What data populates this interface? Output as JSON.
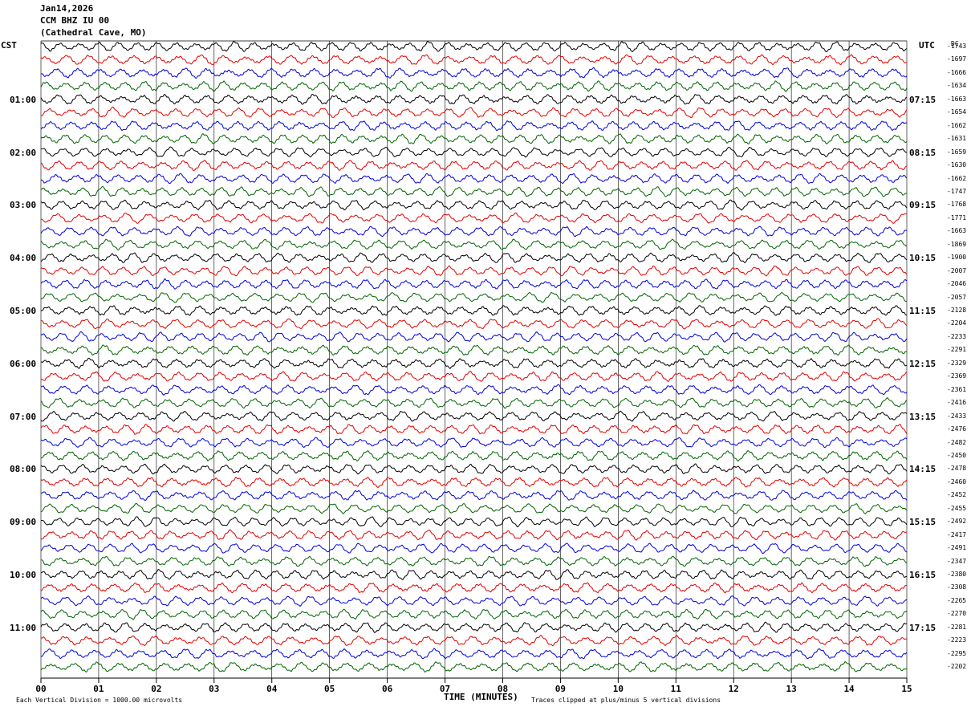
{
  "header": {
    "date": "Jan14,2026",
    "station": "CCM BHZ IU 00",
    "location": "(Cathedral Cave, MO)"
  },
  "left_axis_label": "CST",
  "right_axis_label": "UTC",
  "dc_label": "DC",
  "footer": {
    "scale_note": "Each Vertical Division = 1000.00 microvolts",
    "xlabel": "TIME (MINUTES)",
    "clip_note": "Traces clipped at plus/minus 5 vertical divisions"
  },
  "colors": {
    "black": "#000000",
    "red": "#e60000",
    "blue": "#0000dd",
    "green": "#006400",
    "grid": "#000000"
  },
  "chart_data": {
    "type": "line",
    "title": "",
    "xlabel": "TIME (MINUTES)",
    "ylabel": "",
    "xlim": [
      0,
      15
    ],
    "x_ticks": [
      "00",
      "01",
      "02",
      "03",
      "04",
      "05",
      "06",
      "07",
      "08",
      "09",
      "10",
      "11",
      "12",
      "13",
      "14",
      "15"
    ],
    "left_hour_labels": [
      "01:00",
      "02:00",
      "03:00",
      "04:00",
      "05:00",
      "06:00",
      "07:00",
      "08:00",
      "09:00",
      "10:00",
      "11:00"
    ],
    "right_hour_labels": [
      "07:15",
      "08:15",
      "09:15",
      "10:15",
      "11:15",
      "12:15",
      "13:15",
      "14:15",
      "15:15",
      "16:15",
      "17:15"
    ],
    "trace_colors_cycle": [
      "black",
      "red",
      "blue",
      "green"
    ],
    "dc_offsets": [
      -1743,
      -1697,
      -1666,
      -1634,
      -1663,
      -1654,
      -1662,
      -1631,
      -1659,
      -1630,
      -1662,
      -1747,
      -1768,
      -1771,
      -1663,
      -1869,
      -1900,
      -2007,
      -2046,
      -2057,
      -2128,
      -2204,
      -2233,
      -2291,
      -2329,
      -2369,
      -2361,
      -2416,
      -2433,
      -2476,
      -2482,
      -2450,
      -2478,
      -2460,
      -2452,
      -2455,
      -2492,
      -2417,
      -2491,
      -2347,
      -2380,
      -2308,
      -2265,
      -2270,
      -2281,
      -2223,
      -2295,
      -2202
    ],
    "trace_count": 48,
    "grid": true
  }
}
